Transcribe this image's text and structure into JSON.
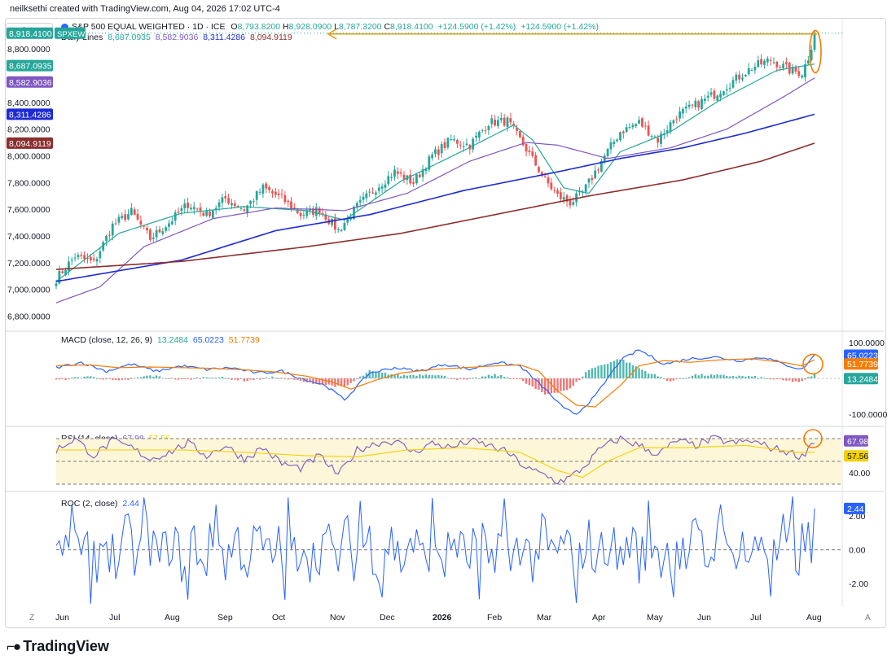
{
  "header": {
    "attribution": "neilksethi created with TradingView.com, Aug 04, 2026 17:02 UTC-4"
  },
  "toolbar": {
    "point_label": "point"
  },
  "legend": {
    "title": "S&P 500 EQUAL WEIGHTED · 1D · ICE",
    "ohlc": [
      {
        "k": "O",
        "v": "8,793.8200"
      },
      {
        "k": "H",
        "v": "8,928.0900"
      },
      {
        "k": "L",
        "v": "8,787.3200"
      },
      {
        "k": "C",
        "v": "8,918.4100"
      }
    ],
    "change": "+124.5900 (+1.42%)",
    "change2": "+124.5900 (+1.42%)",
    "lines_label": "Daily Lines",
    "lines": [
      "8,687.0935",
      "8,582.9036",
      "8,311.4286",
      "8,094.9119"
    ]
  },
  "colors": {
    "up": "#26a69a",
    "down": "#ef5350",
    "ema_fast": "#26a69a",
    "sma50": "#7e57c2",
    "sma100": "#1e2ad4",
    "sma200": "#8b2e2e",
    "macd": "#2962ff",
    "signal": "#f57c00",
    "rsi": "#7e57c2",
    "rsi_ma": "#f5d000",
    "roc": "#2962ff",
    "target": "#d4a017"
  },
  "price_tags": {
    "last": "8,918.4100",
    "symbol": "SPXEW",
    "ema_fast": "8,687.0935",
    "sma50": "8,582.9036",
    "sma100": "8,311.4286",
    "sma200": "8,094.9119"
  },
  "chart_data": [
    {
      "type": "candlestick",
      "title": "S&P 500 EQUAL WEIGHTED · 1D · ICE",
      "x_ticks": [
        "Jun",
        "Jul",
        "Aug",
        "Sep",
        "Oct",
        "Nov",
        "Dec",
        "2026",
        "Feb",
        "Mar",
        "Apr",
        "May",
        "Jun",
        "Jul",
        "Aug"
      ],
      "y_ticks": [
        "6,800.0000",
        "7,000.0000",
        "7,200.0000",
        "7,400.0000",
        "7,600.0000",
        "7,800.0000",
        "8,000.0000",
        "8,200.0000",
        "8,400.0000",
        "8,800.0000"
      ],
      "ylim": [
        6700,
        9020
      ],
      "anchors_close": [
        [
          0,
          7080
        ],
        [
          6,
          7250
        ],
        [
          12,
          7200
        ],
        [
          18,
          7480
        ],
        [
          24,
          7580
        ],
        [
          30,
          7380
        ],
        [
          36,
          7500
        ],
        [
          42,
          7640
        ],
        [
          48,
          7560
        ],
        [
          54,
          7680
        ],
        [
          60,
          7600
        ],
        [
          66,
          7760
        ],
        [
          72,
          7680
        ],
        [
          78,
          7560
        ],
        [
          84,
          7600
        ],
        [
          90,
          7440
        ],
        [
          96,
          7620
        ],
        [
          102,
          7760
        ],
        [
          108,
          7880
        ],
        [
          114,
          7800
        ],
        [
          120,
          8000
        ],
        [
          126,
          8120
        ],
        [
          132,
          8080
        ],
        [
          138,
          8250
        ],
        [
          144,
          8260
        ],
        [
          150,
          8050
        ],
        [
          156,
          7820
        ],
        [
          160,
          7700
        ],
        [
          164,
          7650
        ],
        [
          168,
          7720
        ],
        [
          174,
          7960
        ],
        [
          180,
          8180
        ],
        [
          186,
          8250
        ],
        [
          192,
          8120
        ],
        [
          198,
          8300
        ],
        [
          204,
          8380
        ],
        [
          210,
          8460
        ],
        [
          216,
          8560
        ],
        [
          222,
          8660
        ],
        [
          228,
          8720
        ],
        [
          234,
          8640
        ],
        [
          238,
          8620
        ],
        [
          241,
          8794
        ],
        [
          242,
          8918
        ]
      ],
      "moving_averages": [
        {
          "name": "8,687.0935",
          "anchors": [
            [
              0,
              7060
            ],
            [
              20,
              7420
            ],
            [
              40,
              7570
            ],
            [
              60,
              7620
            ],
            [
              80,
              7590
            ],
            [
              92,
              7520
            ],
            [
              110,
              7810
            ],
            [
              130,
              8040
            ],
            [
              146,
              8230
            ],
            [
              152,
              8120
            ],
            [
              162,
              7760
            ],
            [
              170,
              7720
            ],
            [
              180,
              8030
            ],
            [
              196,
              8180
            ],
            [
              212,
              8420
            ],
            [
              230,
              8640
            ],
            [
              242,
              8687
            ]
          ]
        },
        {
          "name": "8,582.9036",
          "anchors": [
            [
              0,
              6900
            ],
            [
              14,
              7020
            ],
            [
              28,
              7320
            ],
            [
              50,
              7530
            ],
            [
              70,
              7610
            ],
            [
              92,
              7590
            ],
            [
              112,
              7720
            ],
            [
              132,
              7960
            ],
            [
              150,
              8100
            ],
            [
              160,
              8080
            ],
            [
              176,
              7980
            ],
            [
              196,
              8060
            ],
            [
              214,
              8200
            ],
            [
              232,
              8440
            ],
            [
              242,
              8583
            ]
          ]
        },
        {
          "name": "8,311.4286",
          "anchors": [
            [
              0,
              7060
            ],
            [
              40,
              7220
            ],
            [
              70,
              7440
            ],
            [
              100,
              7560
            ],
            [
              130,
              7740
            ],
            [
              160,
              7880
            ],
            [
              180,
              7980
            ],
            [
              200,
              8060
            ],
            [
              220,
              8170
            ],
            [
              242,
              8311
            ]
          ]
        },
        {
          "name": "8,094.9119",
          "anchors": [
            [
              0,
              7150
            ],
            [
              40,
              7210
            ],
            [
              80,
              7320
            ],
            [
              110,
              7420
            ],
            [
              140,
              7560
            ],
            [
              170,
              7700
            ],
            [
              200,
              7820
            ],
            [
              225,
              7960
            ],
            [
              242,
              8095
            ]
          ]
        }
      ],
      "annotation": {
        "label": "8,918.4100",
        "target": 8918
      }
    },
    {
      "type": "line",
      "title": "MACD (close, 12, 26, 9)",
      "legend": [
        "13.2484",
        "65.0223",
        "51.7739"
      ],
      "y_ticks": [
        "100.0000",
        "0.0000",
        "-100.0000"
      ],
      "ylim": [
        -130,
        130
      ],
      "series": [
        {
          "name": "65.0223",
          "anchors": [
            [
              0,
              30
            ],
            [
              8,
              45
            ],
            [
              16,
              20
            ],
            [
              24,
              40
            ],
            [
              32,
              20
            ],
            [
              40,
              35
            ],
            [
              48,
              25
            ],
            [
              56,
              30
            ],
            [
              64,
              15
            ],
            [
              72,
              20
            ],
            [
              80,
              -5
            ],
            [
              86,
              -20
            ],
            [
              92,
              -60
            ],
            [
              100,
              15
            ],
            [
              108,
              30
            ],
            [
              116,
              20
            ],
            [
              124,
              40
            ],
            [
              132,
              25
            ],
            [
              140,
              45
            ],
            [
              148,
              35
            ],
            [
              156,
              -30
            ],
            [
              162,
              -85
            ],
            [
              166,
              -100
            ],
            [
              172,
              -50
            ],
            [
              180,
              50
            ],
            [
              186,
              80
            ],
            [
              194,
              40
            ],
            [
              202,
              55
            ],
            [
              210,
              60
            ],
            [
              218,
              50
            ],
            [
              226,
              60
            ],
            [
              232,
              40
            ],
            [
              238,
              25
            ],
            [
              242,
              65
            ]
          ]
        },
        {
          "name": "51.7739",
          "anchors": [
            [
              0,
              35
            ],
            [
              10,
              38
            ],
            [
              20,
              30
            ],
            [
              30,
              32
            ],
            [
              40,
              30
            ],
            [
              50,
              28
            ],
            [
              60,
              24
            ],
            [
              70,
              18
            ],
            [
              80,
              6
            ],
            [
              88,
              -10
            ],
            [
              94,
              -30
            ],
            [
              102,
              -5
            ],
            [
              110,
              15
            ],
            [
              120,
              25
            ],
            [
              130,
              30
            ],
            [
              140,
              35
            ],
            [
              148,
              38
            ],
            [
              154,
              20
            ],
            [
              160,
              -35
            ],
            [
              166,
              -75
            ],
            [
              172,
              -80
            ],
            [
              180,
              -20
            ],
            [
              186,
              35
            ],
            [
              194,
              50
            ],
            [
              202,
              45
            ],
            [
              212,
              52
            ],
            [
              222,
              55
            ],
            [
              232,
              45
            ],
            [
              238,
              35
            ],
            [
              242,
              52
            ]
          ]
        }
      ],
      "histogram": {
        "name": "13.2484",
        "anchors": [
          [
            0,
            -5
          ],
          [
            10,
            6
          ],
          [
            20,
            -8
          ],
          [
            30,
            8
          ],
          [
            40,
            -4
          ],
          [
            50,
            5
          ],
          [
            60,
            -6
          ],
          [
            70,
            3
          ],
          [
            80,
            -10
          ],
          [
            92,
            -25
          ],
          [
            100,
            20
          ],
          [
            110,
            8
          ],
          [
            120,
            12
          ],
          [
            130,
            -5
          ],
          [
            140,
            10
          ],
          [
            148,
            -4
          ],
          [
            156,
            -45
          ],
          [
            164,
            -30
          ],
          [
            170,
            25
          ],
          [
            180,
            55
          ],
          [
            188,
            20
          ],
          [
            196,
            -8
          ],
          [
            204,
            10
          ],
          [
            212,
            8
          ],
          [
            222,
            5
          ],
          [
            232,
            -6
          ],
          [
            238,
            -10
          ],
          [
            242,
            13
          ]
        ]
      }
    },
    {
      "type": "line",
      "title": "RSI (14, close)",
      "legend": [
        "67.98",
        "57.56"
      ],
      "y_ticks": [
        "40.00"
      ],
      "ylim": [
        25,
        80
      ],
      "bands": [
        70,
        50,
        30
      ],
      "series": [
        {
          "name": "67.98",
          "anchors": [
            [
              0,
              60
            ],
            [
              6,
              70
            ],
            [
              12,
              55
            ],
            [
              18,
              68
            ],
            [
              24,
              62
            ],
            [
              30,
              52
            ],
            [
              36,
              58
            ],
            [
              42,
              66
            ],
            [
              48,
              55
            ],
            [
              54,
              64
            ],
            [
              60,
              52
            ],
            [
              66,
              62
            ],
            [
              72,
              48
            ],
            [
              78,
              44
            ],
            [
              84,
              55
            ],
            [
              90,
              38
            ],
            [
              96,
              60
            ],
            [
              102,
              66
            ],
            [
              108,
              68
            ],
            [
              114,
              58
            ],
            [
              120,
              66
            ],
            [
              126,
              62
            ],
            [
              132,
              68
            ],
            [
              138,
              64
            ],
            [
              144,
              58
            ],
            [
              150,
              44
            ],
            [
              156,
              38
            ],
            [
              160,
              32
            ],
            [
              164,
              36
            ],
            [
              168,
              44
            ],
            [
              174,
              62
            ],
            [
              180,
              70
            ],
            [
              186,
              64
            ],
            [
              192,
              56
            ],
            [
              198,
              68
            ],
            [
              204,
              64
            ],
            [
              210,
              70
            ],
            [
              216,
              66
            ],
            [
              222,
              68
            ],
            [
              228,
              62
            ],
            [
              234,
              58
            ],
            [
              238,
              54
            ],
            [
              241,
              66
            ],
            [
              242,
              68
            ]
          ]
        },
        {
          "name": "57.56",
          "anchors": [
            [
              0,
              60
            ],
            [
              20,
              60
            ],
            [
              40,
              60
            ],
            [
              60,
              58
            ],
            [
              80,
              55
            ],
            [
              96,
              54
            ],
            [
              112,
              60
            ],
            [
              130,
              62
            ],
            [
              148,
              58
            ],
            [
              160,
              42
            ],
            [
              168,
              36
            ],
            [
              176,
              50
            ],
            [
              186,
              62
            ],
            [
              200,
              62
            ],
            [
              220,
              64
            ],
            [
              236,
              58
            ],
            [
              242,
              58
            ]
          ]
        }
      ]
    },
    {
      "type": "line",
      "title": "ROC (2, close)",
      "legend": [
        "2.44"
      ],
      "y_ticks": [
        "2.00",
        "0.00",
        "-2.00"
      ],
      "ylim": [
        -3.2,
        3.4
      ],
      "series": [
        {
          "name": "2.44",
          "anchors": [
            [
              0,
              0
            ],
            [
              242,
              2.44
            ]
          ]
        }
      ]
    }
  ]
}
